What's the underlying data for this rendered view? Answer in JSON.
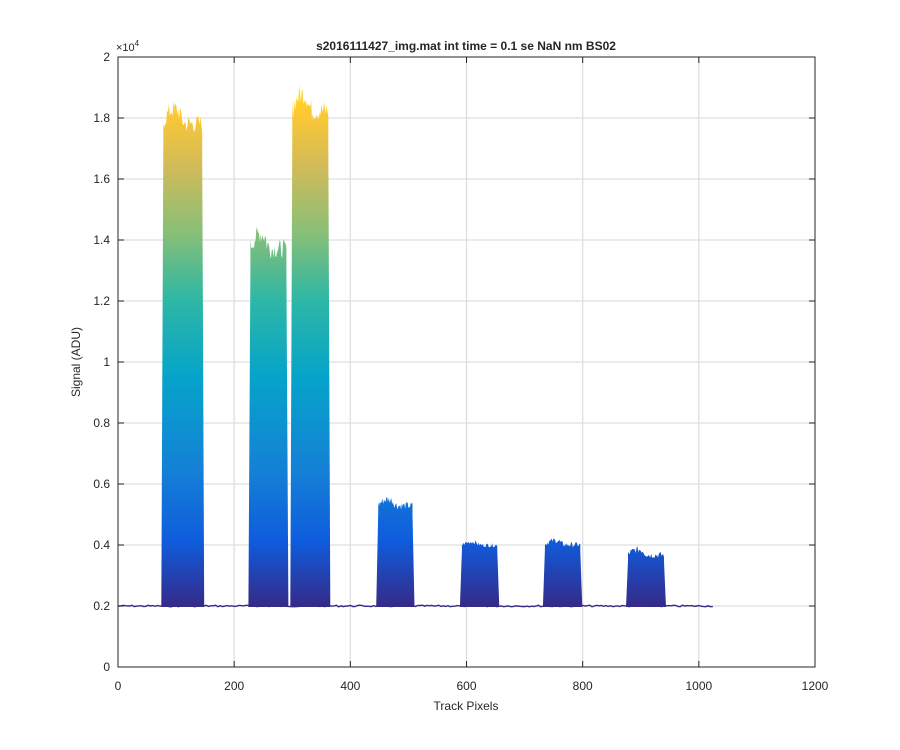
{
  "chart_data": {
    "type": "area",
    "title": "s2016111427_img.mat int time = 0.1 se  NaN nm BS02",
    "xlabel": "Track Pixels",
    "ylabel": "Signal (ADU)",
    "xlim": [
      0,
      1200
    ],
    "ylim": [
      0,
      20000
    ],
    "x_ticks": [
      0,
      200,
      400,
      600,
      800,
      1000,
      1200
    ],
    "x_tick_labels": [
      "0",
      "200",
      "400",
      "600",
      "800",
      "1000",
      "1200"
    ],
    "y_ticks": [
      0,
      2000,
      4000,
      6000,
      8000,
      10000,
      12000,
      14000,
      16000,
      18000,
      20000
    ],
    "y_tick_labels": [
      "0",
      "0.2",
      "0.4",
      "0.6",
      "0.8",
      "1",
      "1.2",
      "1.4",
      "1.6",
      "1.8",
      "2"
    ],
    "y_exponent_label": "×10",
    "y_exponent_power": "4",
    "grid": true,
    "legend": "none",
    "baseline": 2000,
    "x_max_data": 1024,
    "peaks": [
      {
        "x_start": 78,
        "x_end": 145,
        "peak": 18300,
        "top": 17600
      },
      {
        "x_start": 228,
        "x_end": 290,
        "peak": 14200,
        "top": 13500
      },
      {
        "x_start": 300,
        "x_end": 362,
        "peak": 18800,
        "top": 18000
      },
      {
        "x_start": 448,
        "x_end": 507,
        "peak": 5500,
        "top": 5200
      },
      {
        "x_start": 592,
        "x_end": 653,
        "peak": 4100,
        "top": 3950
      },
      {
        "x_start": 735,
        "x_end": 796,
        "peak": 4150,
        "top": 3950
      },
      {
        "x_start": 878,
        "x_end": 940,
        "peak": 3850,
        "top": 3600
      }
    ],
    "colormap": [
      "#352a87",
      "#0f5cdd",
      "#1481d6",
      "#06a4ca",
      "#2eb7a4",
      "#87bf77",
      "#d1bb59",
      "#fec832",
      "#f9fb0e"
    ]
  }
}
